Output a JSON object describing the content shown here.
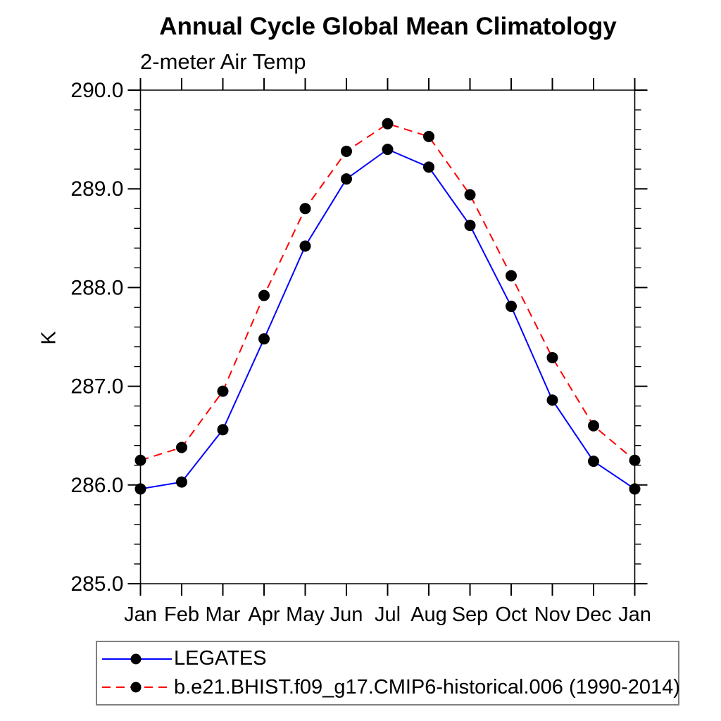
{
  "header": {
    "title": "Annual Cycle Global Mean Climatology",
    "subtitle": "2-meter Air Temp"
  },
  "chart_data": {
    "type": "line",
    "title": "Annual Cycle Global Mean Climatology",
    "subtitle": "2-meter Air Temp",
    "xlabel": "",
    "ylabel": "K",
    "ylim": [
      285.0,
      290.0
    ],
    "yticks": [
      285.0,
      286.0,
      287.0,
      288.0,
      289.0,
      290.0
    ],
    "ytick_labels": [
      "285.0",
      "286.0",
      "287.0",
      "288.0",
      "289.0",
      "290.0"
    ],
    "y_minor_step": 0.2,
    "grid": false,
    "legend_position": "bottom-left-outside",
    "categories": [
      "Jan",
      "Feb",
      "Mar",
      "Apr",
      "May",
      "Jun",
      "Jul",
      "Aug",
      "Sep",
      "Oct",
      "Nov",
      "Dec",
      "Jan"
    ],
    "series": [
      {
        "name": "LEGATES",
        "color": "#0000ff",
        "style": "solid",
        "marker": "filled-circle",
        "marker_color": "#000000",
        "values": [
          285.96,
          286.03,
          286.56,
          287.48,
          288.42,
          289.1,
          289.4,
          289.22,
          288.63,
          287.81,
          286.86,
          286.24,
          285.96
        ]
      },
      {
        "name": "b.e21.BHIST.f09_g17.CMIP6-historical.006 (1990-2014)",
        "color": "#ff0000",
        "style": "dashed",
        "marker": "filled-circle",
        "marker_color": "#000000",
        "values": [
          286.25,
          286.38,
          286.95,
          287.92,
          288.8,
          289.38,
          289.66,
          289.53,
          288.94,
          288.12,
          287.29,
          286.6,
          286.25
        ]
      }
    ],
    "axis_color": "#000000"
  }
}
